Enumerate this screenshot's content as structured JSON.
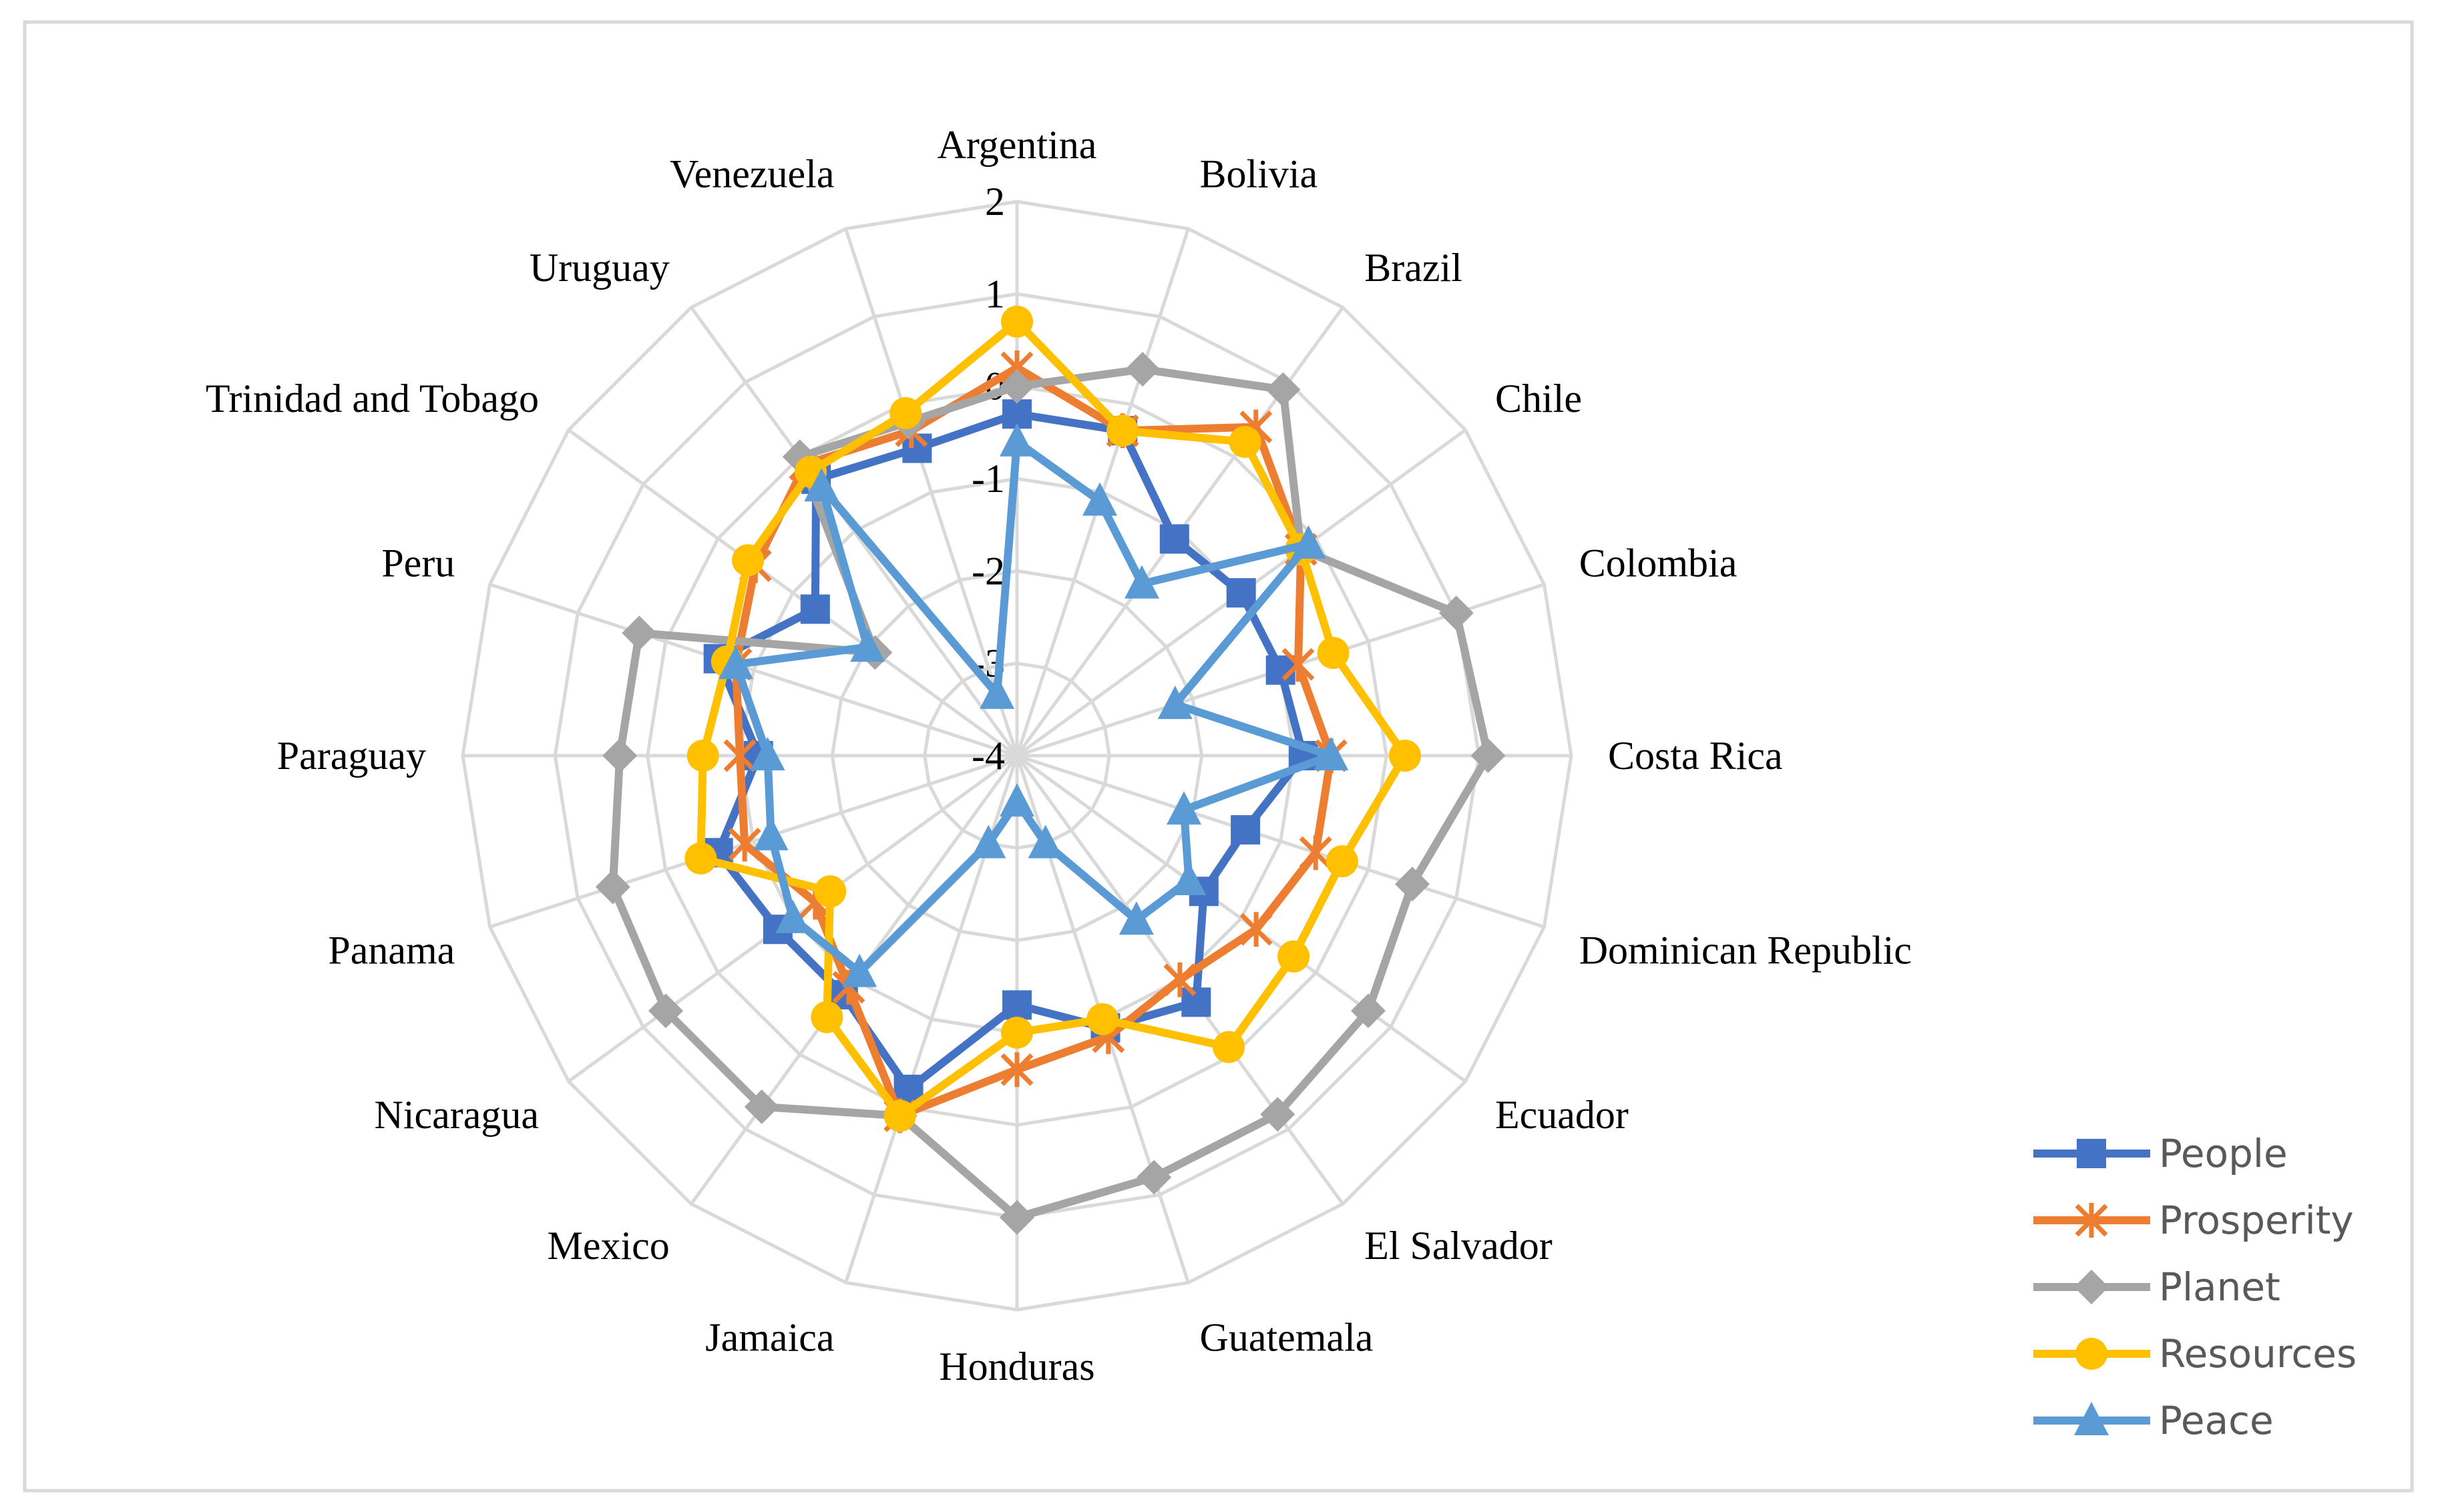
{
  "chart_data": {
    "type": "radar",
    "title": "",
    "categories": [
      "Argentina",
      "Bolivia",
      "Brazil",
      "Chile",
      "Colombia",
      "Costa Rica",
      "Dominican Republic",
      "Ecuador",
      "El Salvador",
      "Guatemala",
      "Honduras",
      "Jamaica",
      "Mexico",
      "Nicaragua",
      "Panama",
      "Paraguay",
      "Peru",
      "Trinidad and Tobago",
      "Uruguay",
      "Venezuela"
    ],
    "rlim": [
      -4,
      2
    ],
    "ticks": [
      -4,
      -3,
      -2,
      -1,
      0,
      1,
      2
    ],
    "tick_labels": [
      "-4",
      "-3",
      "-2",
      "-1",
      "0",
      "1",
      "2"
    ],
    "grid": true,
    "legend_position": "bottom-right",
    "series": [
      {
        "name": "People",
        "color": "#4472C4",
        "marker": "square",
        "values": [
          -0.3,
          -0.3,
          -1.1,
          -1.0,
          -1.0,
          -0.9,
          -1.4,
          -1.5,
          -0.7,
          -0.9,
          -1.3,
          -0.2,
          -0.8,
          -0.8,
          -0.6,
          -1.2,
          -0.6,
          -1.3,
          -0.3,
          -0.5
        ]
      },
      {
        "name": "Prosperity",
        "color": "#ED7D31",
        "marker": "star",
        "values": [
          0.2,
          -0.3,
          0.4,
          -0.2,
          -0.8,
          -0.6,
          -0.6,
          -0.8,
          -1.0,
          -0.8,
          -0.6,
          0.1,
          -0.9,
          -1.3,
          -0.9,
          -1.0,
          -0.8,
          -0.5,
          -0.1,
          -0.3
        ]
      },
      {
        "name": "Planet",
        "color": "#A5A5A5",
        "marker": "diamond",
        "values": [
          0.0,
          0.4,
          0.9,
          -0.2,
          1.0,
          1.1,
          0.5,
          0.7,
          0.8,
          0.8,
          1.0,
          0.1,
          0.7,
          0.7,
          0.6,
          0.3,
          0.3,
          -2.1,
          0.0,
          -0.2
        ]
      },
      {
        "name": "Resources",
        "color": "#FFC000",
        "marker": "circle",
        "values": [
          0.7,
          -0.3,
          0.2,
          -0.2,
          -0.4,
          0.2,
          -0.3,
          -0.3,
          -0.1,
          -1.0,
          -1.0,
          0.1,
          -0.5,
          -1.5,
          -0.4,
          -0.6,
          -0.7,
          -0.4,
          -0.2,
          -0.1
        ]
      },
      {
        "name": "Peace",
        "color": "#5B9BD5",
        "marker": "triangle",
        "values": [
          -0.6,
          -1.1,
          -1.7,
          -0.1,
          -2.2,
          -0.6,
          -2.1,
          -1.7,
          -1.8,
          -3.0,
          -3.5,
          -3.0,
          -1.1,
          -1.0,
          -1.2,
          -1.3,
          -0.8,
          -2.0,
          -0.4,
          -3.3
        ]
      }
    ]
  }
}
